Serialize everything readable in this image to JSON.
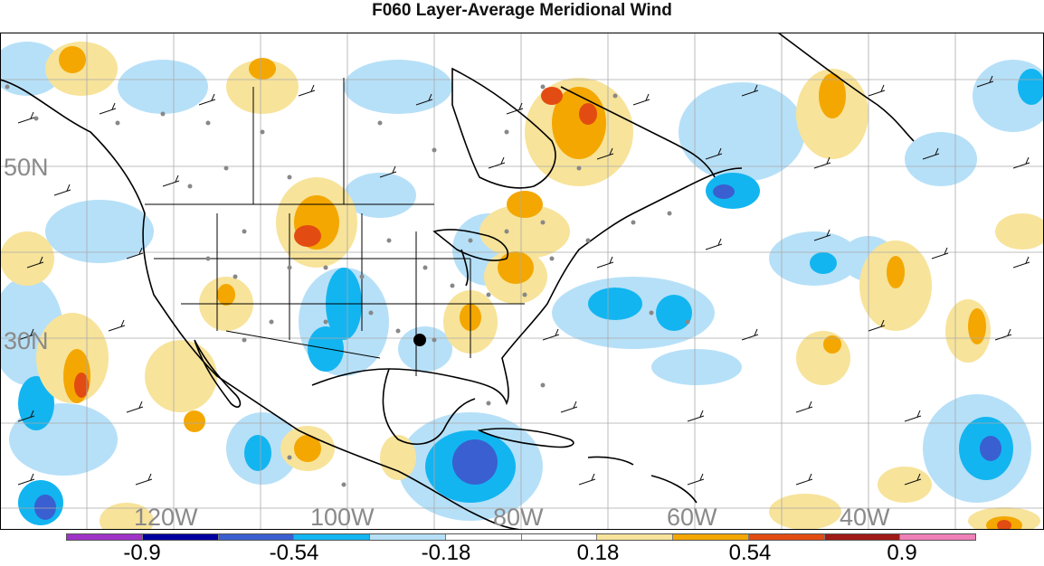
{
  "title": "F060 Layer-Average Meridional Wind",
  "map": {
    "lat_labels": [
      "50N",
      "30N"
    ],
    "lon_labels": [
      "120W",
      "100W",
      "80W",
      "60W",
      "40W"
    ],
    "colors": {
      "ocean": "#ffffff",
      "coastline": "#000000",
      "grid": "#aaaaaa",
      "station": "#888888",
      "marker": "#000000"
    }
  },
  "colorbar": {
    "colors": [
      "#a033c8",
      "#0000a0",
      "#3a5fd0",
      "#12b5f0",
      "#b6e0f8",
      "#ffffff",
      "#ffffff",
      "#f7e39a",
      "#f4a700",
      "#e24c12",
      "#a01a16",
      "#f080b8"
    ],
    "labels": [
      "-0.9",
      "-0.54",
      "-0.18",
      "0.18",
      "0.54",
      "0.9"
    ]
  }
}
